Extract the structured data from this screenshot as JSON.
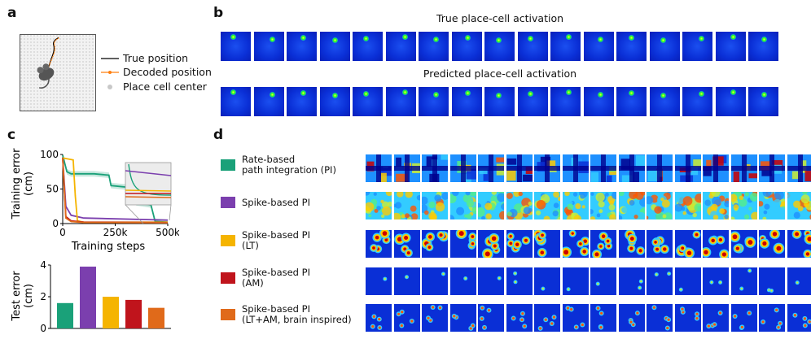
{
  "panels": {
    "a": "a",
    "b": "b",
    "c": "c",
    "d": "d"
  },
  "panel_a": {
    "legend": [
      {
        "label": "True position",
        "color": "#000000",
        "kind": "line"
      },
      {
        "label": "Decoded position",
        "color": "#ff7f0e",
        "kind": "dotline"
      },
      {
        "label": "Place cell center",
        "color": "#c8c8c8",
        "kind": "dot"
      }
    ]
  },
  "panel_b": {
    "row1_title": "True place-cell activation",
    "row2_title": "Predicted place-cell activation",
    "tiles_per_row": 17,
    "colors": {
      "background": "#0a2fd6",
      "spot": "#33ee33"
    }
  },
  "chart_data": [
    {
      "type": "line",
      "ylabel": "Training error\n(cm)",
      "xlabel": "Training steps",
      "x_ticks": [
        "0",
        "250k",
        "500k"
      ],
      "y_ticks": [
        "0",
        "50",
        "100"
      ],
      "xlim": [
        0,
        500000
      ],
      "ylim": [
        0,
        100
      ],
      "series": [
        {
          "color": "#1aa179",
          "x": [
            0,
            20000,
            40000,
            150000,
            220000,
            230000,
            330000,
            350000,
            420000,
            440000,
            500000
          ],
          "y": [
            99,
            75,
            72,
            72,
            70,
            55,
            52,
            30,
            27,
            3,
            2
          ]
        },
        {
          "color": "#7b3fae",
          "x": [
            0,
            15000,
            40000,
            100000,
            500000
          ],
          "y": [
            95,
            25,
            12,
            8,
            5
          ]
        },
        {
          "color": "#f5b400",
          "x": [
            0,
            50000,
            60000,
            70000,
            100000,
            500000
          ],
          "y": [
            95,
            92,
            40,
            4,
            2,
            2
          ]
        },
        {
          "color": "#c0141c",
          "x": [
            0,
            15000,
            40000,
            100000,
            500000
          ],
          "y": [
            95,
            10,
            4,
            2,
            1.5
          ]
        },
        {
          "color": "#e06a1a",
          "x": [
            0,
            15000,
            40000,
            100000,
            500000
          ],
          "y": [
            95,
            8,
            3,
            1.5,
            1.2
          ]
        }
      ]
    },
    {
      "type": "bar",
      "ylabel": "Test error\n(cm)",
      "y_ticks": [
        "0",
        "2",
        "4"
      ],
      "ylim": [
        0,
        4
      ],
      "values": [
        1.6,
        3.9,
        2.0,
        1.8,
        1.3
      ],
      "colors": [
        "#1aa179",
        "#7b3fae",
        "#f5b400",
        "#c0141c",
        "#e06a1a"
      ]
    }
  ],
  "panel_d": {
    "rows": [
      {
        "label_lines": [
          "Rate-based",
          "path integration (PI)"
        ],
        "color": "#1aa179",
        "style": "rate"
      },
      {
        "label_lines": [
          "Spike-based PI"
        ],
        "color": "#7b3fae",
        "style": "noise"
      },
      {
        "label_lines": [
          "Spike-based PI",
          "(LT)"
        ],
        "color": "#f5b400",
        "style": "blobs"
      },
      {
        "label_lines": [
          "Spike-based PI",
          "(AM)"
        ],
        "color": "#c0141c",
        "style": "sparse"
      },
      {
        "label_lines": [
          "Spike-based PI",
          "(LT+AM, brain inspired)"
        ],
        "color": "#e06a1a",
        "style": "spots"
      }
    ],
    "tiles_per_row": 16
  }
}
